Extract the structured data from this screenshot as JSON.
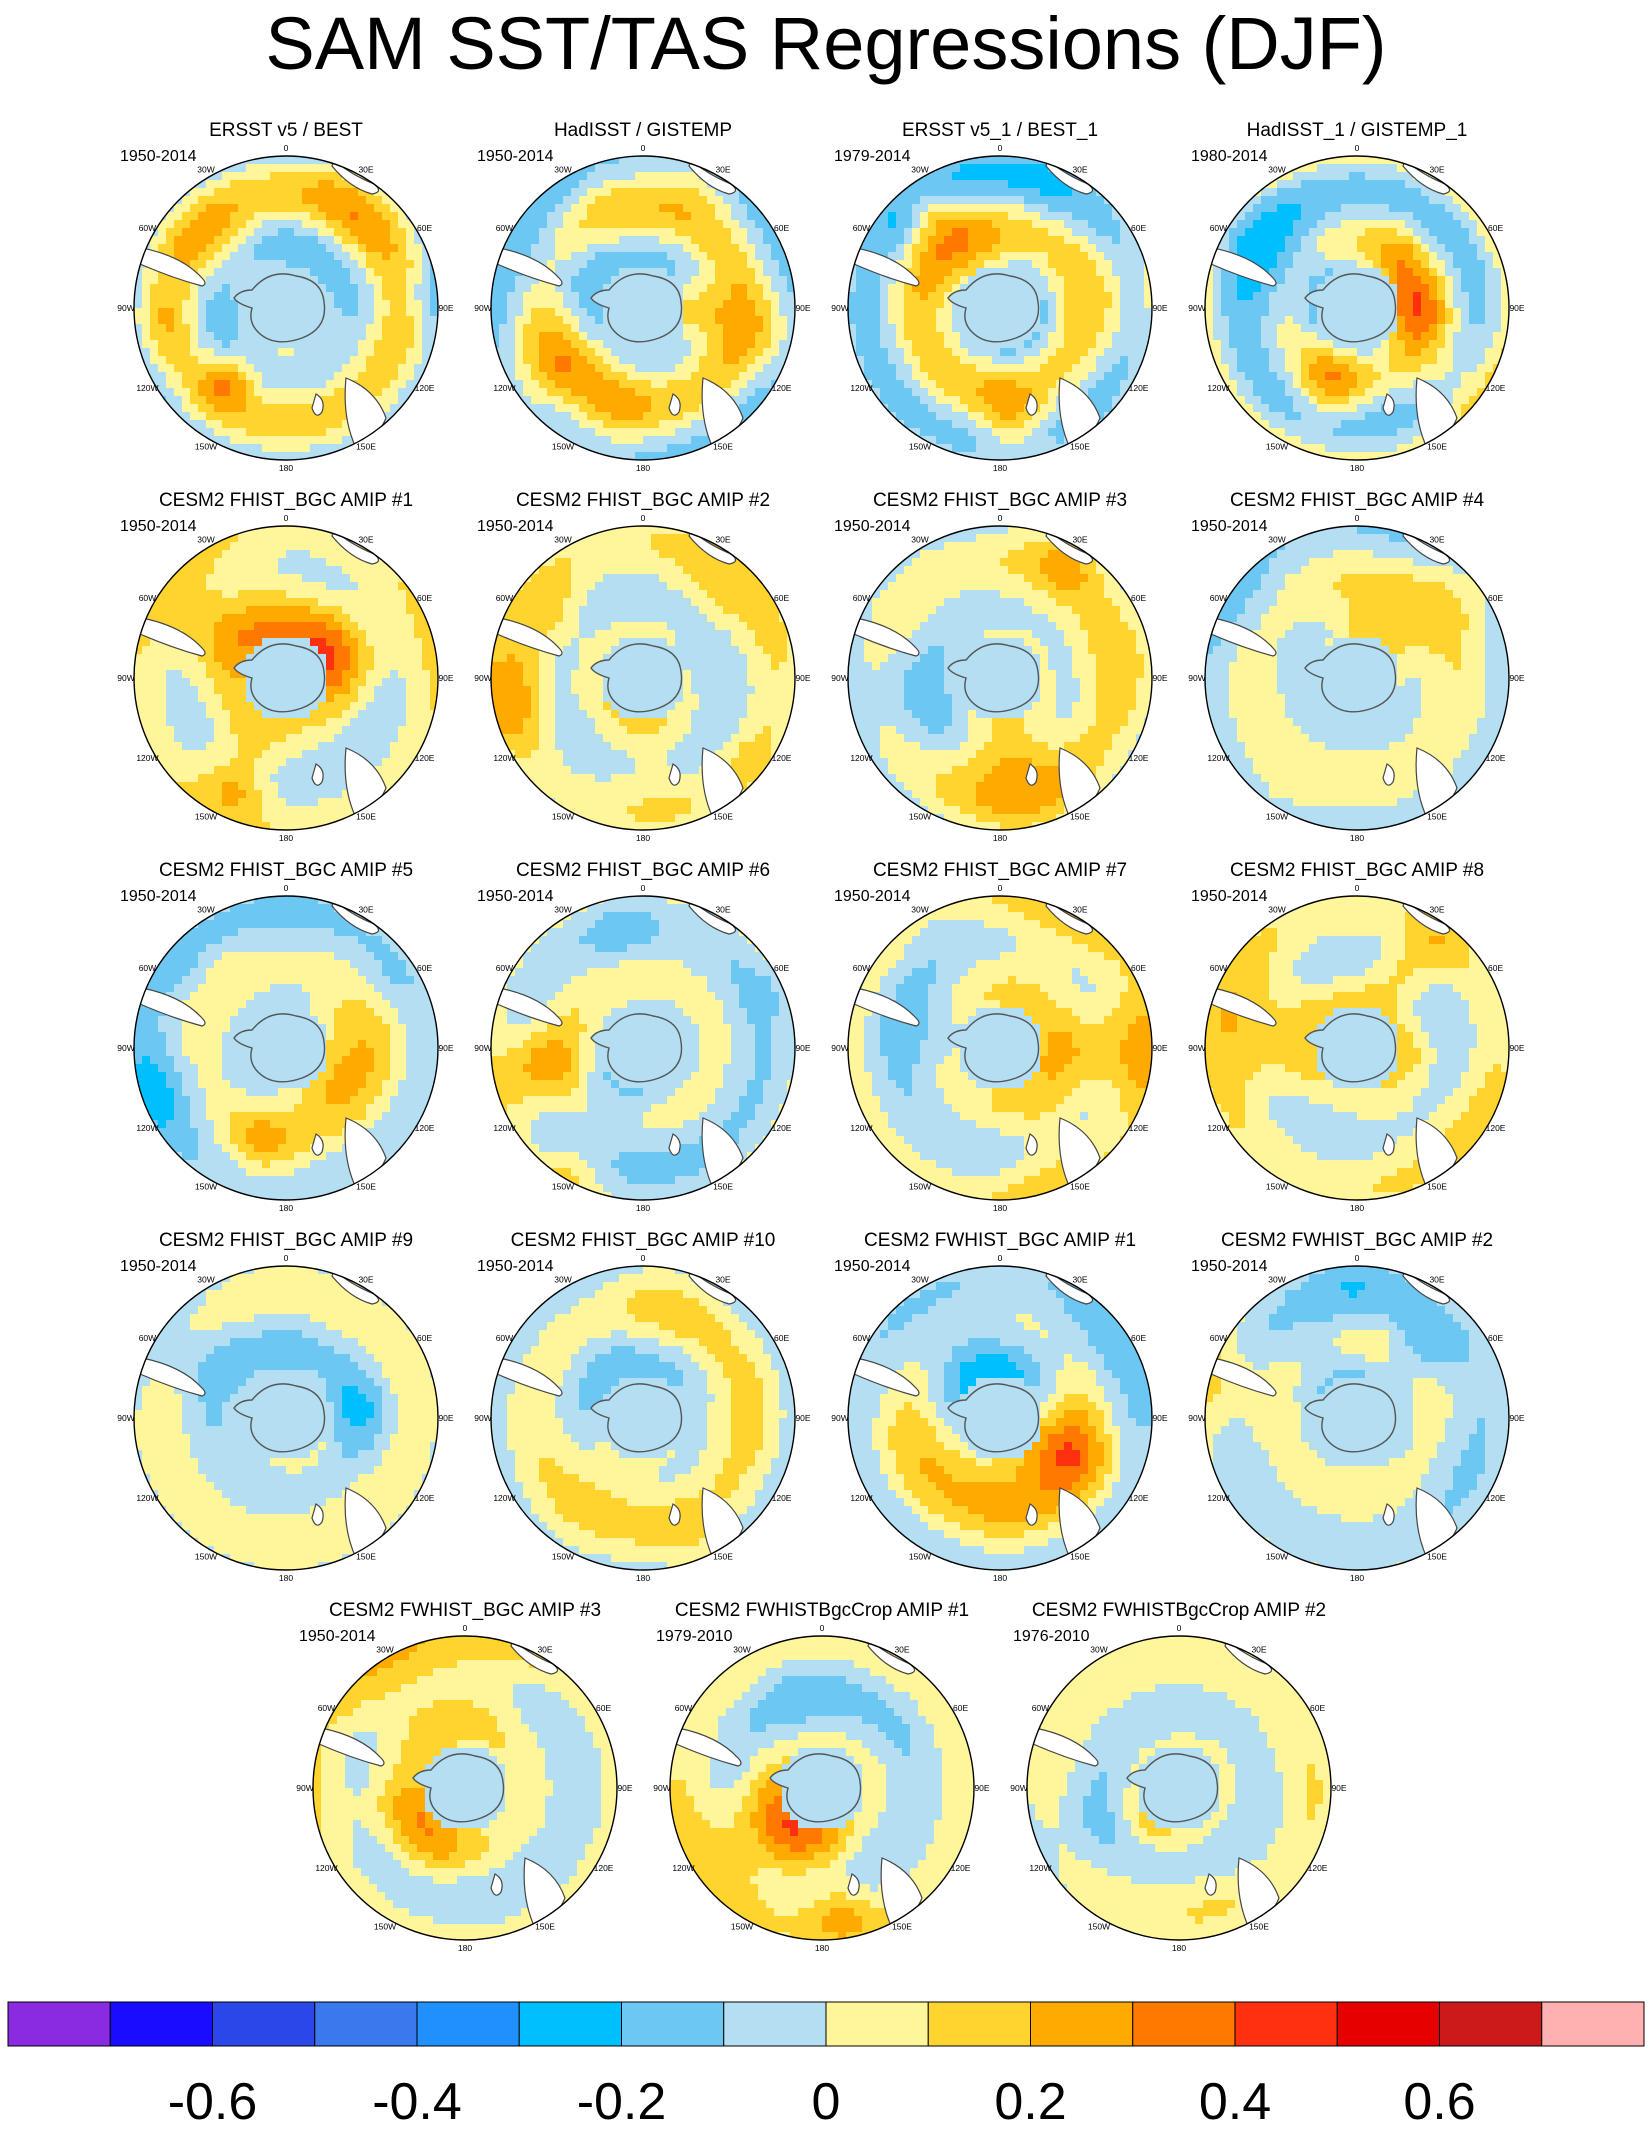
{
  "figure": {
    "title": "SAM SST/TAS Regressions (DJF)"
  },
  "chart_data": {
    "type": "heatmap",
    "projection": "south-polar-stereographic",
    "variable": "SST/TAS regression on SAM index",
    "season": "DJF",
    "longitude_labels": [
      "0",
      "30E",
      "60E",
      "90E",
      "120E",
      "150E",
      "180",
      "150W",
      "120W",
      "90W",
      "60W",
      "30W"
    ],
    "panels": [
      {
        "title": "ERSST v5 / BEST",
        "period": "1950-2014"
      },
      {
        "title": "HadISST / GISTEMP",
        "period": "1950-2014"
      },
      {
        "title": "ERSST v5_1 / BEST_1",
        "period": "1979-2014"
      },
      {
        "title": "HadISST_1 / GISTEMP_1",
        "period": "1980-2014"
      },
      {
        "title": "CESM2 FHIST_BGC AMIP #1",
        "period": "1950-2014"
      },
      {
        "title": "CESM2 FHIST_BGC AMIP #2",
        "period": "1950-2014"
      },
      {
        "title": "CESM2 FHIST_BGC AMIP #3",
        "period": "1950-2014"
      },
      {
        "title": "CESM2 FHIST_BGC AMIP #4",
        "period": "1950-2014"
      },
      {
        "title": "CESM2 FHIST_BGC AMIP #5",
        "period": "1950-2014"
      },
      {
        "title": "CESM2 FHIST_BGC AMIP #6",
        "period": "1950-2014"
      },
      {
        "title": "CESM2 FHIST_BGC AMIP #7",
        "period": "1950-2014"
      },
      {
        "title": "CESM2 FHIST_BGC AMIP #8",
        "period": "1950-2014"
      },
      {
        "title": "CESM2 FHIST_BGC AMIP #9",
        "period": "1950-2014"
      },
      {
        "title": "CESM2 FHIST_BGC AMIP #10",
        "period": "1950-2014"
      },
      {
        "title": "CESM2 FWHIST_BGC AMIP #1",
        "period": "1950-2014"
      },
      {
        "title": "CESM2 FWHIST_BGC AMIP #2",
        "period": "1950-2014"
      },
      {
        "title": "CESM2 FWHIST_BGC AMIP #3",
        "period": "1950-2014"
      },
      {
        "title": "CESM2 FWHISTBgcCrop AMIP #1",
        "period": "1979-2010"
      },
      {
        "title": "CESM2 FWHISTBgcCrop AMIP #2",
        "period": "1976-2010"
      }
    ],
    "colorbar": {
      "labels": [
        "-0.6",
        "-0.4",
        "-0.2",
        "0",
        "0.2",
        "0.4",
        "0.6"
      ],
      "label_values": [
        -0.6,
        -0.4,
        -0.2,
        0,
        0.2,
        0.4,
        0.6
      ],
      "range": [
        -0.8,
        0.8
      ],
      "interval": 0.1,
      "colors": [
        "#8a2be2",
        "#1a0dff",
        "#2b47e8",
        "#3a78ee",
        "#2090ff",
        "#00bfff",
        "#6cc7f2",
        "#b4def2",
        "#fff59a",
        "#ffd42e",
        "#ffaa00",
        "#ff7800",
        "#ff3010",
        "#e60000",
        "#cc1a1a",
        "#ffb0b0"
      ]
    }
  }
}
